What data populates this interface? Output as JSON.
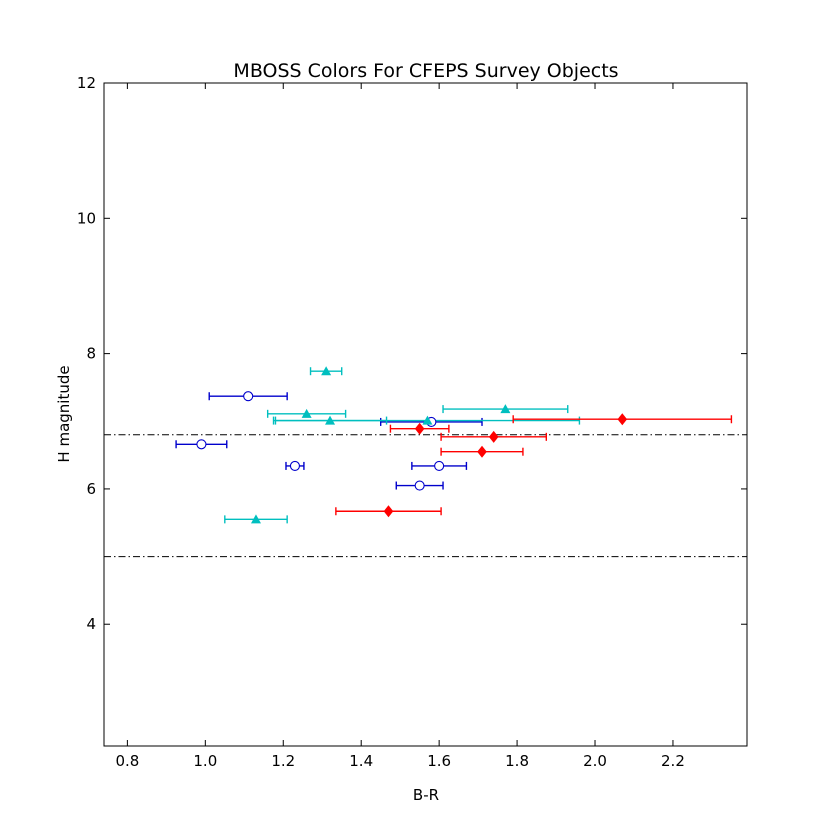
{
  "chart_data": {
    "type": "scatter",
    "title": "MBOSS Colors For CFEPS Survey Objects",
    "xlabel": "B-R",
    "ylabel": "H magnitude",
    "xlim": [
      0.74,
      2.39
    ],
    "ylim": [
      2.2,
      12.0
    ],
    "x_ticks": [
      0.8,
      1.0,
      1.2,
      1.4,
      1.6,
      1.8,
      2.0,
      2.2
    ],
    "x_tick_labels": [
      "0.8",
      "1.0",
      "1.2",
      "1.4",
      "1.6",
      "1.8",
      "2.0",
      "2.2"
    ],
    "y_ticks": [
      4,
      6,
      8,
      10,
      12
    ],
    "y_tick_labels": [
      "4",
      "6",
      "8",
      "10",
      "12"
    ],
    "grid": false,
    "reference_lines": [
      {
        "y": 6.8,
        "style": "dash-dot",
        "color": "#000000"
      },
      {
        "y": 5.0,
        "style": "dash-dot",
        "color": "#000000"
      }
    ],
    "series": [
      {
        "name": "blue-circles",
        "marker": "circle-open",
        "color": "#0000cc",
        "points": [
          {
            "x": 1.11,
            "y": 7.37,
            "xerr": 0.1
          },
          {
            "x": 0.99,
            "y": 6.66,
            "xerr": 0.065
          },
          {
            "x": 1.23,
            "y": 6.34,
            "xerr": 0.023
          },
          {
            "x": 1.58,
            "y": 6.99,
            "xerr": 0.13
          },
          {
            "x": 1.6,
            "y": 6.34,
            "xerr": 0.07
          },
          {
            "x": 1.55,
            "y": 6.05,
            "xerr": 0.06
          }
        ]
      },
      {
        "name": "cyan-triangles",
        "marker": "triangle",
        "color": "#00bfbf",
        "points": [
          {
            "x": 1.31,
            "y": 7.74,
            "xerr": 0.04
          },
          {
            "x": 1.26,
            "y": 7.11,
            "xerr": 0.1
          },
          {
            "x": 1.32,
            "y": 7.01,
            "xerr": 0.145
          },
          {
            "x": 1.77,
            "y": 7.18,
            "xerr": 0.16
          },
          {
            "x": 1.57,
            "y": 7.01,
            "xerr": 0.39
          },
          {
            "x": 1.13,
            "y": 5.55,
            "xerr": 0.08
          }
        ]
      },
      {
        "name": "red-diamonds",
        "marker": "diamond",
        "color": "#ff0000",
        "points": [
          {
            "x": 2.07,
            "y": 7.03,
            "xerr": 0.28
          },
          {
            "x": 1.55,
            "y": 6.89,
            "xerr": 0.075
          },
          {
            "x": 1.74,
            "y": 6.77,
            "xerr": 0.135
          },
          {
            "x": 1.71,
            "y": 6.55,
            "xerr": 0.105
          },
          {
            "x": 1.47,
            "y": 5.67,
            "xerr": 0.135
          }
        ]
      }
    ]
  }
}
